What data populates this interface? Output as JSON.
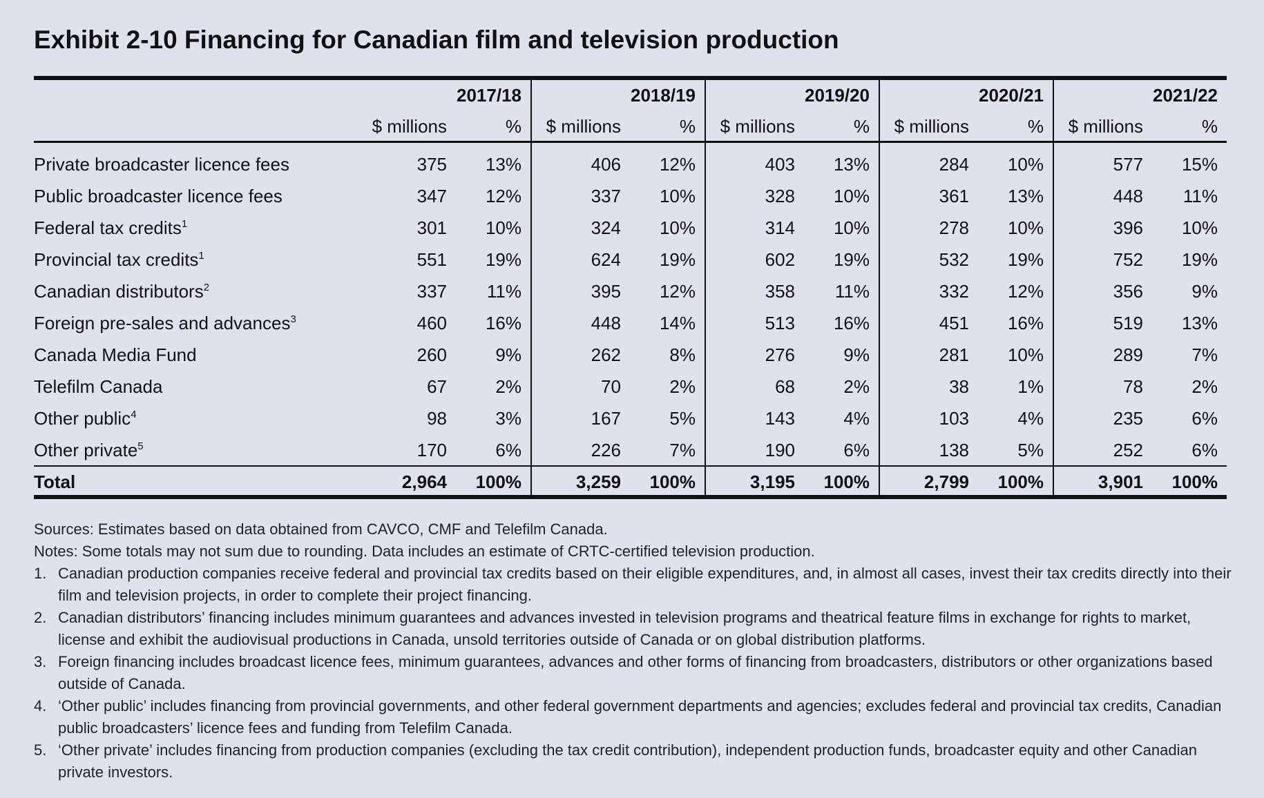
{
  "title": "Exhibit 2-10  Financing for Canadian film and television production",
  "table": {
    "years": [
      "2017/18",
      "2018/19",
      "2019/20",
      "2020/21",
      "2021/22"
    ],
    "subheaders": [
      "$ millions",
      "%"
    ],
    "rows": [
      {
        "label": "Private broadcaster licence fees",
        "cells": [
          [
            "375",
            "13%"
          ],
          [
            "406",
            "12%"
          ],
          [
            "403",
            "13%"
          ],
          [
            "284",
            "10%"
          ],
          [
            "577",
            "15%"
          ]
        ]
      },
      {
        "label": "Public broadcaster licence fees",
        "cells": [
          [
            "347",
            "12%"
          ],
          [
            "337",
            "10%"
          ],
          [
            "328",
            "10%"
          ],
          [
            "361",
            "13%"
          ],
          [
            "448",
            "11%"
          ]
        ]
      },
      {
        "label": "Federal tax credits",
        "note": "1",
        "cells": [
          [
            "301",
            "10%"
          ],
          [
            "324",
            "10%"
          ],
          [
            "314",
            "10%"
          ],
          [
            "278",
            "10%"
          ],
          [
            "396",
            "10%"
          ]
        ]
      },
      {
        "label": "Provincial tax credits",
        "note": "1",
        "cells": [
          [
            "551",
            "19%"
          ],
          [
            "624",
            "19%"
          ],
          [
            "602",
            "19%"
          ],
          [
            "532",
            "19%"
          ],
          [
            "752",
            "19%"
          ]
        ]
      },
      {
        "label": "Canadian distributors",
        "note": "2",
        "cells": [
          [
            "337",
            "11%"
          ],
          [
            "395",
            "12%"
          ],
          [
            "358",
            "11%"
          ],
          [
            "332",
            "12%"
          ],
          [
            "356",
            "9%"
          ]
        ]
      },
      {
        "label": "Foreign pre-sales and advances",
        "note": "3",
        "cells": [
          [
            "460",
            "16%"
          ],
          [
            "448",
            "14%"
          ],
          [
            "513",
            "16%"
          ],
          [
            "451",
            "16%"
          ],
          [
            "519",
            "13%"
          ]
        ]
      },
      {
        "label": "Canada Media Fund",
        "cells": [
          [
            "260",
            "9%"
          ],
          [
            "262",
            "8%"
          ],
          [
            "276",
            "9%"
          ],
          [
            "281",
            "10%"
          ],
          [
            "289",
            "7%"
          ]
        ]
      },
      {
        "label": "Telefilm Canada",
        "cells": [
          [
            "67",
            "2%"
          ],
          [
            "70",
            "2%"
          ],
          [
            "68",
            "2%"
          ],
          [
            "38",
            "1%"
          ],
          [
            "78",
            "2%"
          ]
        ]
      },
      {
        "label": "Other public",
        "note": "4",
        "cells": [
          [
            "98",
            "3%"
          ],
          [
            "167",
            "5%"
          ],
          [
            "143",
            "4%"
          ],
          [
            "103",
            "4%"
          ],
          [
            "235",
            "6%"
          ]
        ]
      },
      {
        "label": "Other private",
        "note": "5",
        "cells": [
          [
            "170",
            "6%"
          ],
          [
            "226",
            "7%"
          ],
          [
            "190",
            "6%"
          ],
          [
            "138",
            "5%"
          ],
          [
            "252",
            "6%"
          ]
        ]
      }
    ],
    "total": {
      "label": "Total",
      "cells": [
        [
          "2,964",
          "100%"
        ],
        [
          "3,259",
          "100%"
        ],
        [
          "3,195",
          "100%"
        ],
        [
          "2,799",
          "100%"
        ],
        [
          "3,901",
          "100%"
        ]
      ]
    }
  },
  "sources": "Sources: Estimates based on data obtained from CAVCO, CMF and Telefilm Canada.",
  "notes_intro": "Notes: Some totals may not sum due to rounding. Data includes an estimate of CRTC-certified television production.",
  "footnotes": [
    {
      "marker": "1.",
      "text": "Canadian production companies receive federal and provincial tax credits based on their eligible expenditures, and, in almost all cases, invest their tax credits directly into their film and television projects, in order to complete their project financing."
    },
    {
      "marker": "2.",
      "text": "Canadian distributors’ financing includes minimum guarantees and advances invested in television programs and theatrical feature films in exchange for rights to market, license and exhibit the audiovisual productions in Canada, unsold territories outside of Canada or on global distribution platforms."
    },
    {
      "marker": "3.",
      "text": "Foreign financing includes broadcast licence fees, minimum guarantees, advances and other forms of financing from broadcasters, distributors or other organizations based outside of Canada."
    },
    {
      "marker": "4.",
      "text": "‘Other public’ includes financing from provincial governments, and other federal government departments and agencies; excludes federal and provincial tax credits, Canadian public broadcasters’ licence fees and funding from Telefilm Canada."
    },
    {
      "marker": "5.",
      "text": "‘Other private’ includes financing from production companies (excluding the tax credit contribution), independent production funds, broadcaster equity and other Canadian private investors."
    }
  ]
}
